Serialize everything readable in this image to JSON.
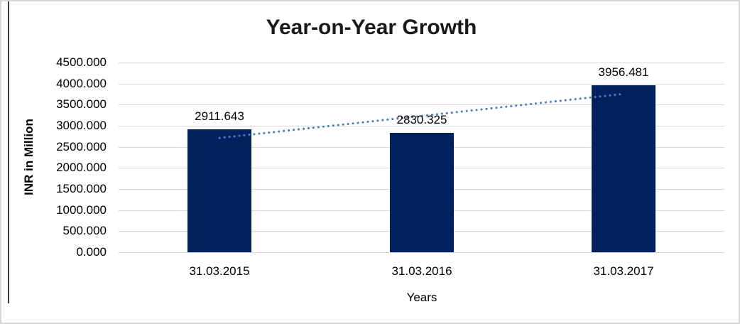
{
  "frame": {
    "border_color": "#d7d7d7",
    "left_edge_line_color": "#3c3c3c"
  },
  "chart_data": {
    "type": "bar",
    "title": "Year-on-Year Growth",
    "xlabel": "Years",
    "ylabel": "INR in Million",
    "categories": [
      "31.03.2015",
      "31.03.2016",
      "31.03.2017"
    ],
    "values": [
      2911.643,
      2830.325,
      3956.481
    ],
    "data_labels": [
      "2911.643",
      "2830.325",
      "3956.481"
    ],
    "ylim": [
      0,
      4500
    ],
    "ytick_step": 500,
    "ytick_labels": [
      "4500.000",
      "4000.000",
      "3500.000",
      "3000.000",
      "2500.000",
      "2000.000",
      "1500.000",
      "1000.000",
      "500.000",
      "0.000"
    ],
    "grid": true,
    "legend": "none",
    "colors": {
      "bar": "#01215E",
      "gridline": "#D9D9D9",
      "trendline": "#4A7EBB",
      "text": "#000000"
    },
    "trendline": {
      "kind": "linear",
      "style": "dotted"
    }
  }
}
